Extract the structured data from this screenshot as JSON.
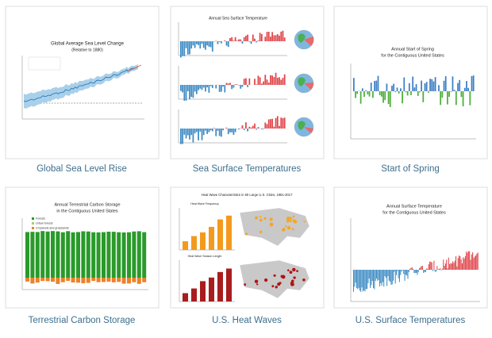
{
  "cards": [
    {
      "caption": "Global Sea Level Rise",
      "title": "Global Average Sea Level Change",
      "subtitle": "(Relative to 1880)"
    },
    {
      "caption": "Sea Surface Temperatures",
      "title": "Annual Sea Surface Temperature"
    },
    {
      "caption": "Start of Spring",
      "title": "Annual Start of Spring",
      "subtitle": "for the Contiguous United States"
    },
    {
      "caption": "Terrestrial Carbon Storage",
      "title": "Annual Terrestrial Carbon Storage",
      "subtitle": "in the Contiguous United States",
      "legend": [
        "Forests",
        "Urban forests",
        "Croplands and grasslands"
      ]
    },
    {
      "caption": "U.S. Heat Waves",
      "title": "Heat Wave Characteristics in 50 Large U.S. Cities, 1961-2017",
      "panels": [
        "Heat Wave Frequency",
        "Heat Wave Season Length"
      ]
    },
    {
      "caption": "U.S. Surface Temperatures",
      "title": "Annual Surface Temperature",
      "subtitle": "for the Contiguous United States"
    }
  ]
}
